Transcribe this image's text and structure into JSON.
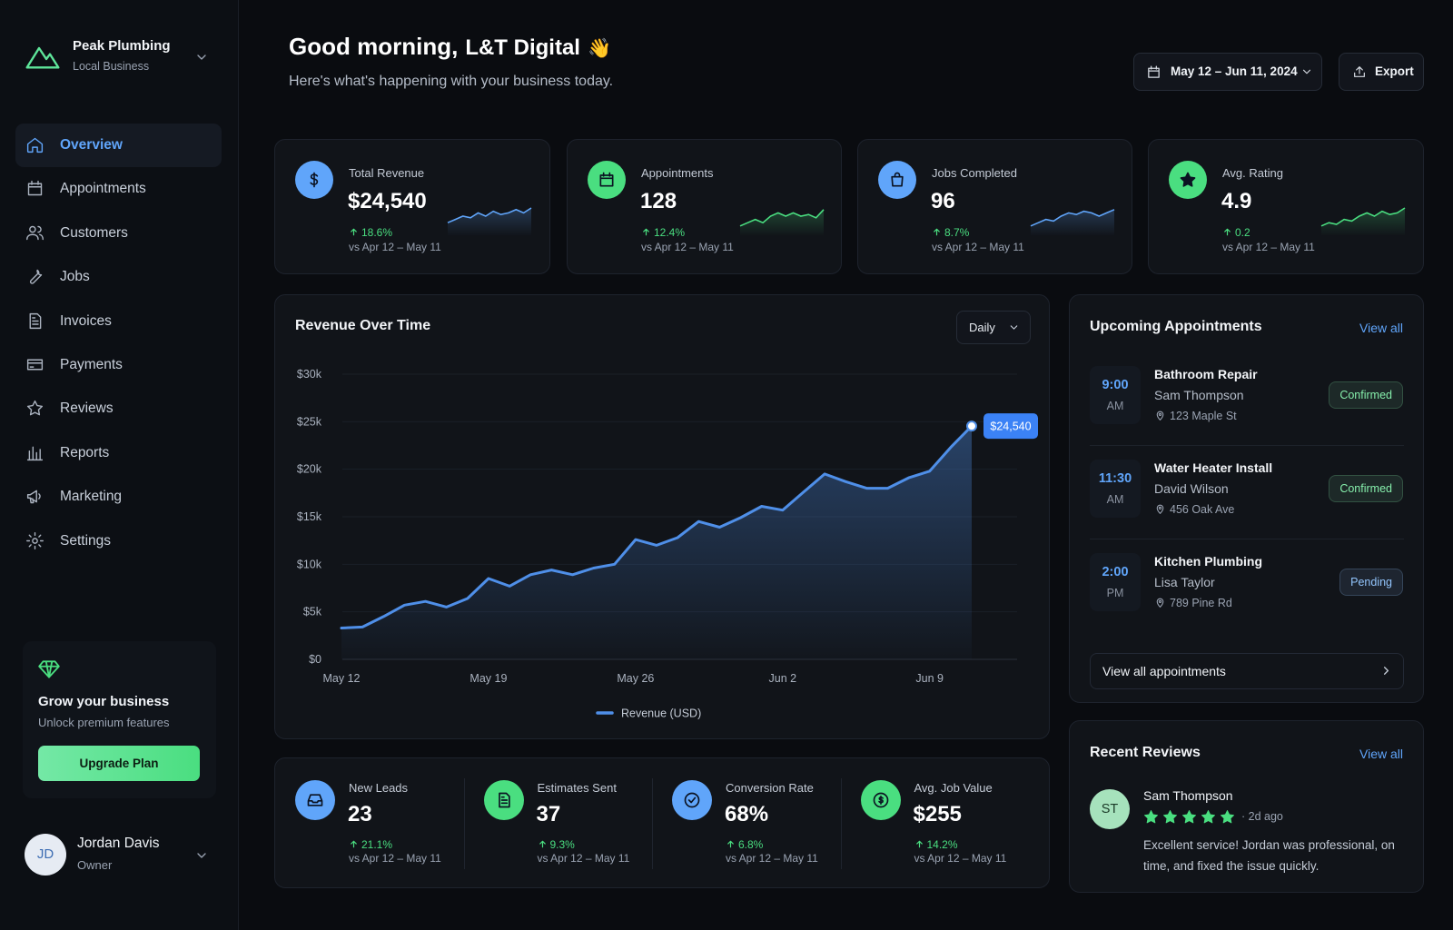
{
  "sidebar": {
    "brand": {
      "name": "Peak Plumbing",
      "subtitle": "Local Business"
    },
    "nav": [
      {
        "label": "Overview",
        "active": true
      },
      {
        "label": "Appointments",
        "active": false
      },
      {
        "label": "Customers",
        "active": false
      },
      {
        "label": "Jobs",
        "active": false
      },
      {
        "label": "Invoices",
        "active": false
      },
      {
        "label": "Payments",
        "active": false
      },
      {
        "label": "Reviews",
        "active": false
      },
      {
        "label": "Reports",
        "active": false
      },
      {
        "label": "Marketing",
        "active": false
      },
      {
        "label": "Settings",
        "active": false
      }
    ],
    "promo": {
      "title": "Grow your business",
      "subtitle": "Unlock premium features",
      "button": "Upgrade Plan"
    },
    "user": {
      "initials": "JD",
      "name": "Jordan Davis",
      "role": "Owner"
    }
  },
  "header": {
    "greeting": "Good morning,",
    "organization": "L&T Digital",
    "emoji": "👋",
    "subtitle": "Here's what's happening with your business today.",
    "date_range": "May 12 – Jun 11, 2024",
    "export": "Export"
  },
  "kpis": [
    {
      "label": "Total Revenue",
      "value": "$24,540",
      "change": "18.6%",
      "period": "vs Apr 12 – May 11",
      "color": "#60a5fa",
      "trend": [
        3,
        4,
        5,
        4.5,
        6,
        5,
        6.5,
        5.5,
        6,
        7,
        6,
        7.5
      ]
    },
    {
      "label": "Appointments",
      "value": "128",
      "change": "12.4%",
      "period": "vs Apr 12 – May 11",
      "color": "#4ade80",
      "trend": [
        2,
        3,
        4,
        3,
        5,
        6,
        5,
        6,
        5,
        5.5,
        4.5,
        7
      ]
    },
    {
      "label": "Jobs Completed",
      "value": "96",
      "change": "8.7%",
      "period": "vs Apr 12 – May 11",
      "color": "#60a5fa",
      "trend": [
        2,
        3,
        4,
        3.5,
        5,
        6,
        5.5,
        6.5,
        6,
        5,
        6,
        7
      ]
    },
    {
      "label": "Avg. Rating",
      "value": "4.9",
      "change": "0.2",
      "period": "vs Apr 12 – May 11",
      "color": "#4ade80",
      "trend": [
        2,
        3,
        2.5,
        4,
        3.5,
        5,
        6,
        5,
        6.5,
        5.5,
        6,
        7.5
      ]
    }
  ],
  "chart_data": {
    "type": "line",
    "title": "Revenue Over Time",
    "interval": "Daily",
    "categories": [
      "May 12",
      null,
      null,
      null,
      null,
      null,
      null,
      "May 19",
      null,
      null,
      null,
      null,
      null,
      null,
      "May 26",
      null,
      null,
      null,
      null,
      null,
      null,
      "Jun 2",
      null,
      null,
      null,
      null,
      null,
      null,
      "Jun 9",
      null,
      null
    ],
    "series": [
      {
        "name": "Revenue (USD)",
        "color": "#4f8fe8",
        "values": [
          3300,
          3400,
          4500,
          5700,
          6100,
          5500,
          6400,
          8500,
          7700,
          8900,
          9400,
          8900,
          9600,
          10000,
          12600,
          12000,
          12800,
          14500,
          13900,
          14900,
          16100,
          15700,
          17600,
          19500,
          18700,
          18000,
          18000,
          19100,
          19800,
          22300,
          24540
        ],
        "value_labels": [
          null,
          null,
          null,
          null,
          null,
          null,
          null,
          null,
          null,
          null,
          null,
          null,
          null,
          null,
          null,
          null,
          null,
          null,
          null,
          null,
          null,
          null,
          null,
          null,
          null,
          null,
          null,
          null,
          null,
          null,
          "$24,540"
        ]
      }
    ],
    "ylim": [
      0,
      30000
    ],
    "yticks": [
      {
        "value": 0,
        "label": "$0"
      },
      {
        "value": 5000,
        "label": "$5k"
      },
      {
        "value": 10000,
        "label": "$10k"
      },
      {
        "value": 15000,
        "label": "$15k"
      },
      {
        "value": 20000,
        "label": "$20k"
      },
      {
        "value": 25000,
        "label": "$25k"
      },
      {
        "value": 30000,
        "label": "$30k"
      }
    ],
    "grid": true,
    "legend": "bottom"
  },
  "appointments": {
    "title": "Upcoming Appointments",
    "view_all": "View all",
    "items": [
      {
        "time": "9:00",
        "period": "AM",
        "title": "Bathroom Repair",
        "customer": "Sam Thompson",
        "address": "123 Maple St",
        "status": "Confirmed",
        "status_color": "#86efac"
      },
      {
        "time": "11:30",
        "period": "AM",
        "title": "Water Heater Install",
        "customer": "David Wilson",
        "address": "456 Oak Ave",
        "status": "Confirmed",
        "status_color": "#86efac"
      },
      {
        "time": "2:00",
        "period": "PM",
        "title": "Kitchen Plumbing",
        "customer": "Lisa Taylor",
        "address": "789 Pine Rd",
        "status": "Pending",
        "status_color": "#93c5fd"
      }
    ],
    "footer": "View all appointments"
  },
  "reviews": {
    "title": "Recent Reviews",
    "view_all": "View all",
    "items": [
      {
        "initials": "ST",
        "name": "Sam Thompson",
        "rating": 5,
        "time": "2d ago",
        "text": "Excellent service! Jordan was professional, on time, and fixed the issue quickly."
      }
    ]
  },
  "metrics": [
    {
      "label": "New Leads",
      "value": "23",
      "change": "21.1%",
      "period": "vs Apr 12 – May 11",
      "color": "#60a5fa"
    },
    {
      "label": "Estimates Sent",
      "value": "37",
      "change": "9.3%",
      "period": "vs Apr 12 – May 11",
      "color": "#4ade80"
    },
    {
      "label": "Conversion Rate",
      "value": "68%",
      "change": "6.8%",
      "period": "vs Apr 12 – May 11",
      "color": "#60a5fa"
    },
    {
      "label": "Avg. Job Value",
      "value": "$255",
      "change": "14.2%",
      "period": "vs Apr 12 – May 11",
      "color": "#4ade80"
    }
  ]
}
